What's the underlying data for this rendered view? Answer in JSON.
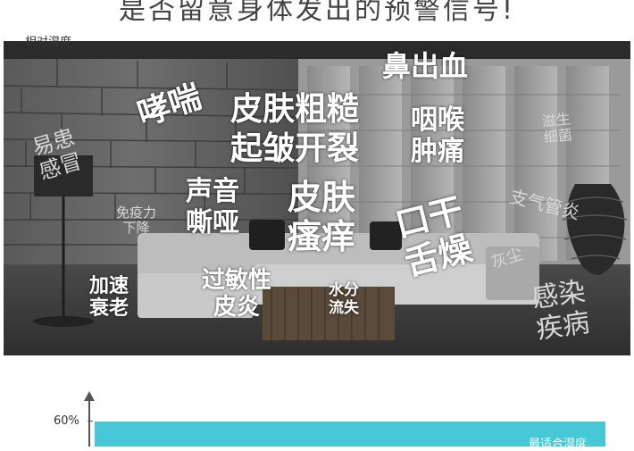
{
  "headline": "是否留意身体发出的预警信号!",
  "symptoms": {
    "wheeze": "哮喘",
    "rough_skin_1": "皮肤粗糙",
    "rough_skin_2": "起皱开裂",
    "nosebleed": "鼻出血",
    "throat_1": "咽喉",
    "throat_2": "肿痛",
    "bacteria_1": "滋生",
    "bacteria_2": "细菌",
    "cold_1": "易患",
    "cold_2": "感冒",
    "voice_1": "声音",
    "voice_2": "嘶哑",
    "itch_1": "皮肤",
    "itch_2": "瘙痒",
    "dry_1": "口干",
    "dry_2": "舌燥",
    "immune_1": "免疫力",
    "immune_2": "下降",
    "bronchitis": "支气管炎",
    "dust": "灰尘",
    "aging_1": "加速",
    "aging_2": "衰老",
    "allergy_1": "过敏性",
    "allergy_2": "皮炎",
    "water_1": "水分",
    "water_2": "流失",
    "infection_1": "感染",
    "infection_2": "疾病"
  },
  "chart": {
    "y_axis_label": "相对湿度",
    "tick_label": "60%",
    "band_label": "最适合湿度"
  },
  "chart_data": {
    "type": "area",
    "ylabel": "相对湿度",
    "y_ticks": [
      "60%"
    ],
    "bands": [
      {
        "name": "最适合湿度",
        "from": 0.6,
        "color": "#48c7d6"
      }
    ]
  }
}
